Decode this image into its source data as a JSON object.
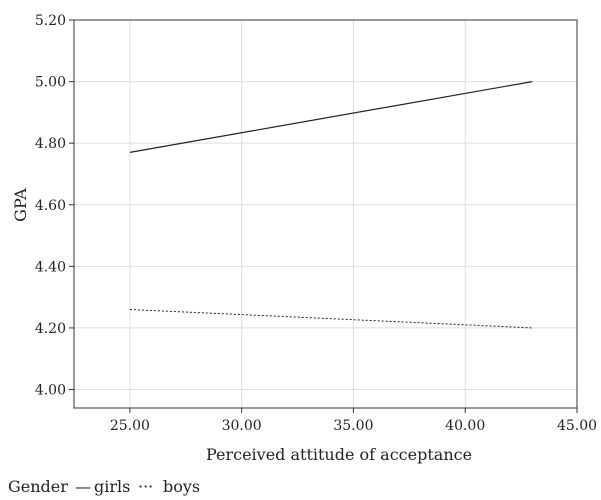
{
  "chart_data": {
    "type": "line",
    "xlabel": "Perceived attitude of acceptance",
    "ylabel": "GPA",
    "xlim": [
      22.5,
      45.0
    ],
    "ylim": [
      3.94,
      5.2
    ],
    "xticks": [
      25,
      30,
      35,
      40,
      45
    ],
    "xtick_labels": [
      "25.00",
      "30.00",
      "35.00",
      "40.00",
      "45.00"
    ],
    "yticks": [
      4.0,
      4.2,
      4.4,
      4.6,
      4.8,
      5.0,
      5.2
    ],
    "ytick_labels": [
      "4.00",
      "4.20",
      "4.40",
      "4.60",
      "4.80",
      "5.00",
      "5.20"
    ],
    "grid": true,
    "legend_title": "Gender",
    "legend_position": "bottom-left",
    "series": [
      {
        "name": "girls",
        "legend_marker": "—",
        "style": "solid",
        "color": "#222222",
        "x": [
          25,
          43
        ],
        "y": [
          4.77,
          5.0
        ]
      },
      {
        "name": "boys",
        "legend_marker": "···",
        "style": "dotted",
        "color": "#222222",
        "x": [
          25,
          43
        ],
        "y": [
          4.26,
          4.2
        ]
      }
    ]
  }
}
